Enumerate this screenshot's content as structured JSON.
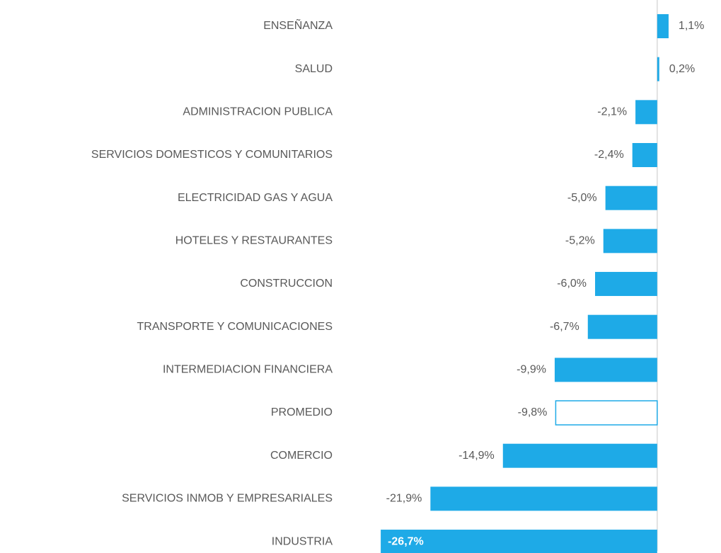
{
  "chart_data": {
    "type": "barh",
    "categories": [
      "ENSEÑANZA",
      "SALUD",
      "ADMINISTRACION PUBLICA",
      "SERVICIOS DOMESTICOS Y COMUNITARIOS",
      "ELECTRICIDAD GAS Y AGUA",
      "HOTELES Y RESTAURANTES",
      "CONSTRUCCION",
      "TRANSPORTE Y COMUNICACIONES",
      "INTERMEDIACION FINANCIERA",
      "PROMEDIO",
      "COMERCIO",
      "SERVICIOS INMOB Y EMPRESARIALES",
      "INDUSTRIA"
    ],
    "values": [
      1.1,
      0.2,
      -2.1,
      -2.4,
      -5.0,
      -5.2,
      -6.0,
      -6.7,
      -9.9,
      -9.8,
      -14.9,
      -21.9,
      -26.7
    ],
    "value_labels": [
      "1,1%",
      "0,2%",
      "-2,1%",
      "-2,4%",
      "-5,0%",
      "-5,2%",
      "-6,0%",
      "-6,7%",
      "-9,9%",
      "-9,8%",
      "-14,9%",
      "-21,9%",
      "-26,7%"
    ],
    "colors": [
      "#1eaae7",
      "#1eaae7",
      "#1eaae7",
      "#1eaae7",
      "#1eaae7",
      "#1eaae7",
      "#1eaae7",
      "#1eaae7",
      "#1eaae7",
      "#ffffff",
      "#1eaae7",
      "#1eaae7",
      "#1eaae7"
    ],
    "edgecolor": "#1eaae7",
    "xlim": [
      -27,
      5
    ]
  }
}
